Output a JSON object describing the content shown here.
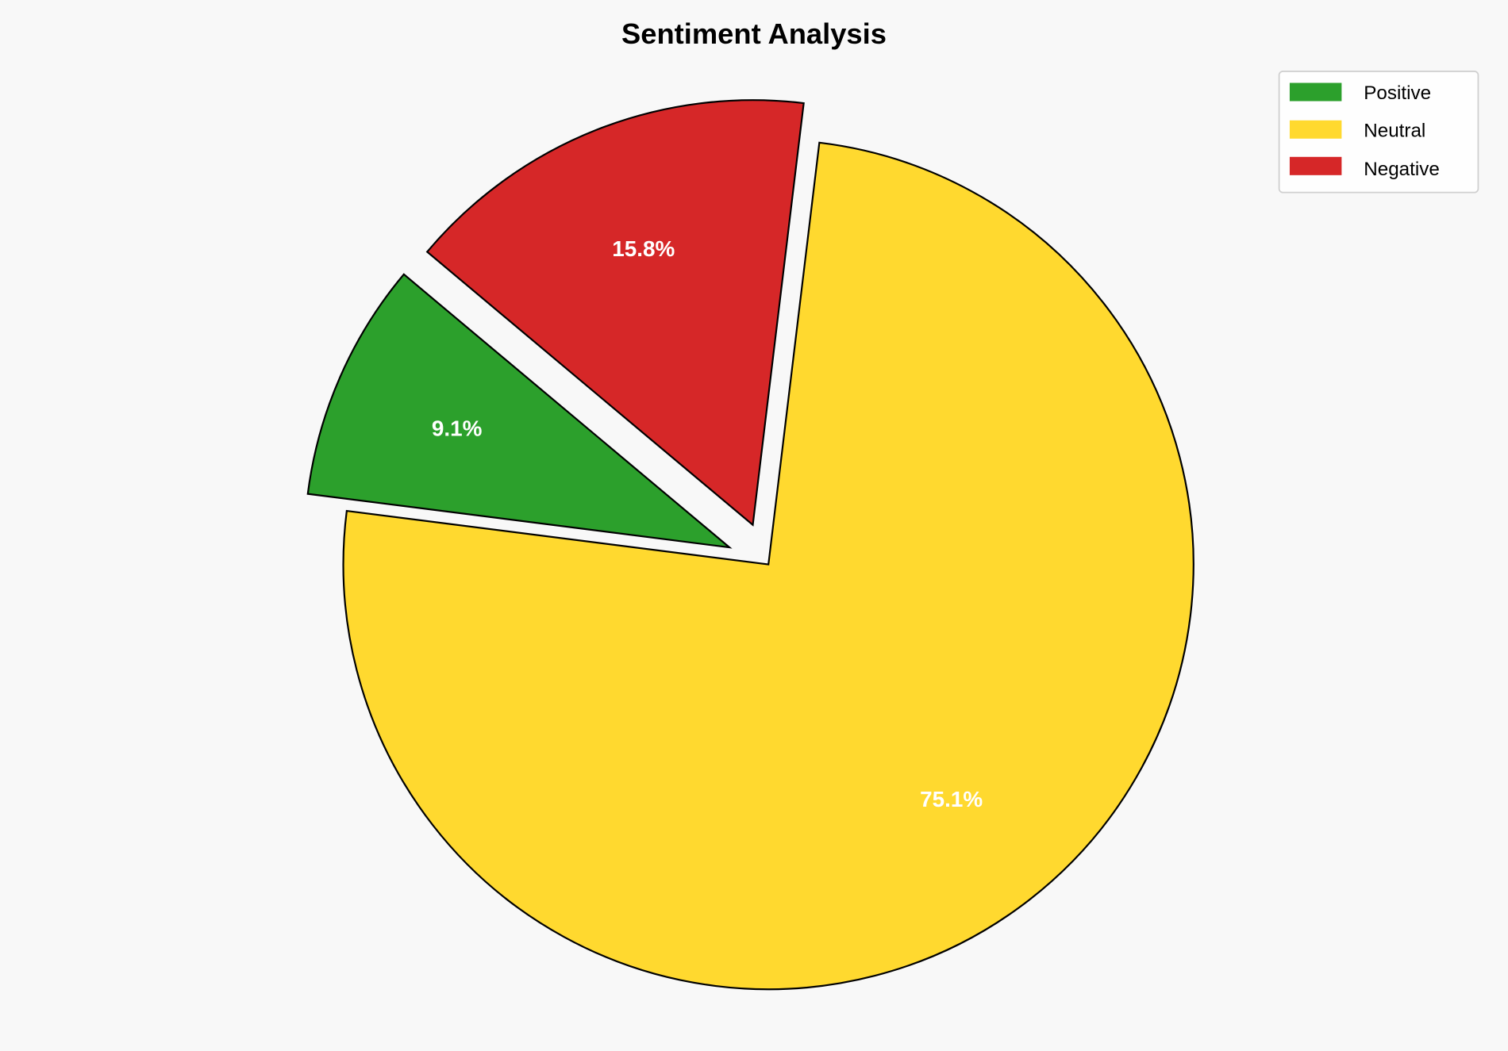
{
  "chart_data": {
    "type": "pie",
    "title": "Sentiment Analysis",
    "categories": [
      "Positive",
      "Neutral",
      "Negative"
    ],
    "values": [
      9.1,
      75.1,
      15.8
    ],
    "labels": [
      "9.1%",
      "75.1%",
      "15.8%"
    ],
    "colors": [
      "#2ca02c",
      "#ffd92f",
      "#d62728"
    ],
    "explode": [
      0.1,
      0,
      0.1
    ],
    "start_angle_deg": 140,
    "direction": "counterclockwise",
    "legend_position": "top-right",
    "edge_color": "#000000"
  }
}
